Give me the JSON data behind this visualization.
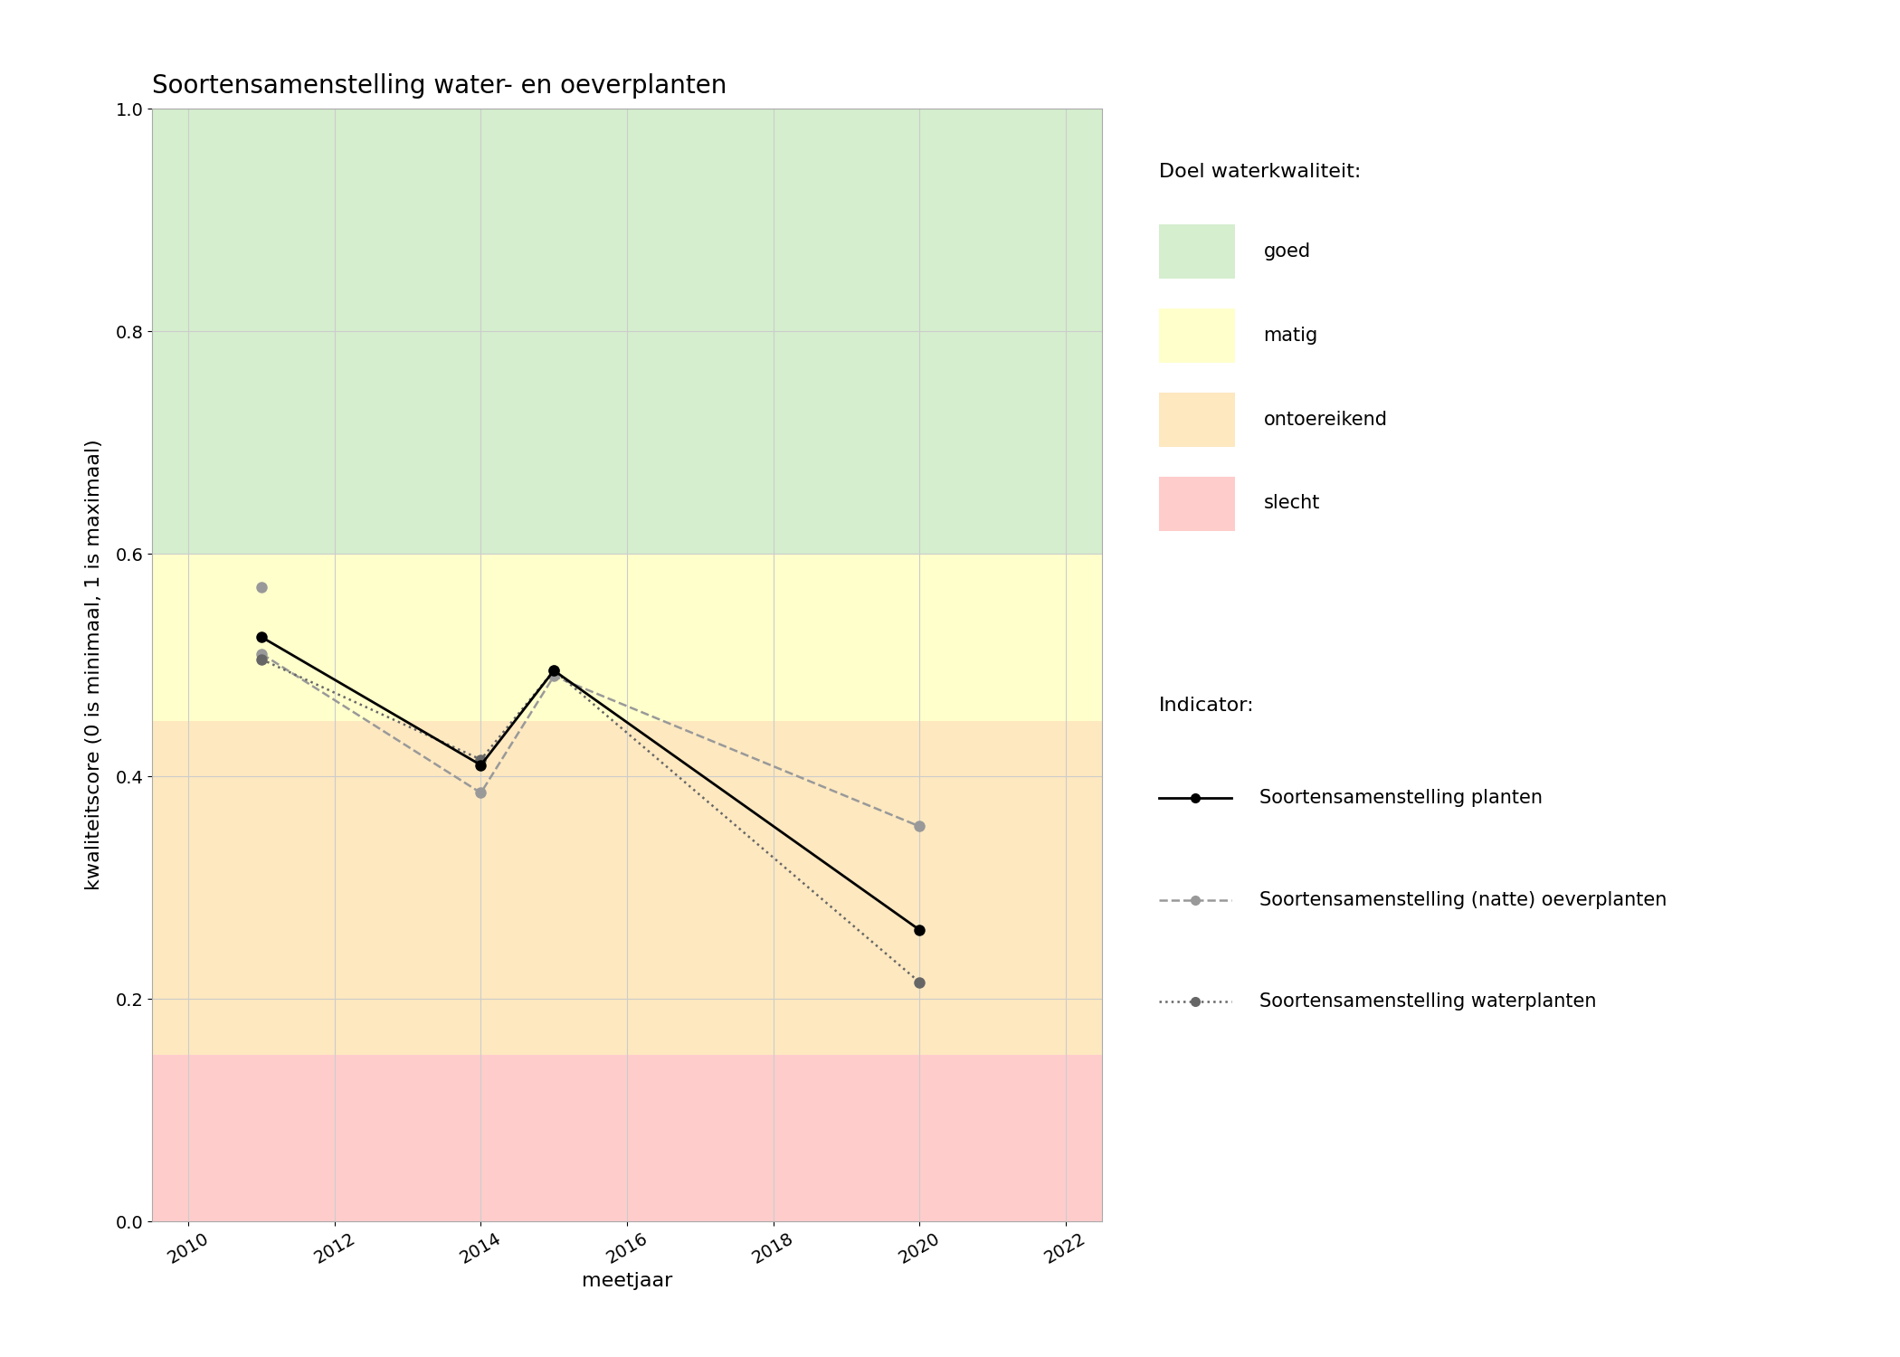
{
  "title": "Soortensamenstelling water- en oeverplanten",
  "xlabel": "meetjaar",
  "ylabel": "kwaliteitscore (0 is minimaal, 1 is maximaal)",
  "xlim": [
    2009.5,
    2022.5
  ],
  "ylim": [
    0.0,
    1.0
  ],
  "xticks": [
    2010,
    2012,
    2014,
    2016,
    2018,
    2020,
    2022
  ],
  "yticks": [
    0.0,
    0.2,
    0.4,
    0.6,
    0.8,
    1.0
  ],
  "bg_color": "#ffffff",
  "plot_bg_color": "#ffffff",
  "quality_bands": [
    {
      "ymin": 0.6,
      "ymax": 1.0,
      "color": "#d5eece",
      "label": "goed"
    },
    {
      "ymin": 0.45,
      "ymax": 0.6,
      "color": "#ffffcc",
      "label": "matig"
    },
    {
      "ymin": 0.15,
      "ymax": 0.45,
      "color": "#fde8c0",
      "label": "ontoereikend"
    },
    {
      "ymin": 0.0,
      "ymax": 0.15,
      "color": "#ffcccc",
      "label": "slecht"
    }
  ],
  "series": {
    "planten": {
      "years": [
        2011,
        2014,
        2015,
        2020
      ],
      "values": [
        0.525,
        0.41,
        0.495,
        0.262
      ],
      "color": "#000000",
      "linestyle": "-",
      "linewidth": 2.0,
      "markersize": 9,
      "label": "Soortensamenstelling planten"
    },
    "oeverplanten": {
      "line_years": [
        2011,
        2014,
        2015,
        2020
      ],
      "line_values": [
        0.51,
        0.385,
        0.49,
        0.355
      ],
      "dot_years": [
        2011,
        2011,
        2014,
        2015,
        2020
      ],
      "dot_values": [
        0.51,
        0.57,
        0.385,
        0.49,
        0.355
      ],
      "color": "#999999",
      "linestyle": "--",
      "linewidth": 1.8,
      "markersize": 9,
      "label": "Soortensamenstelling (natte) oeverplanten"
    },
    "waterplanten": {
      "years": [
        2011,
        2014,
        2015,
        2020
      ],
      "values": [
        0.505,
        0.415,
        0.495,
        0.215
      ],
      "color": "#666666",
      "linestyle": ":",
      "linewidth": 1.8,
      "markersize": 9,
      "label": "Soortensamenstelling waterplanten"
    }
  },
  "grid_color": "#cccccc",
  "title_fontsize": 20,
  "label_fontsize": 16,
  "tick_fontsize": 14,
  "legend_fontsize": 15,
  "legend_title_fontsize": 16
}
